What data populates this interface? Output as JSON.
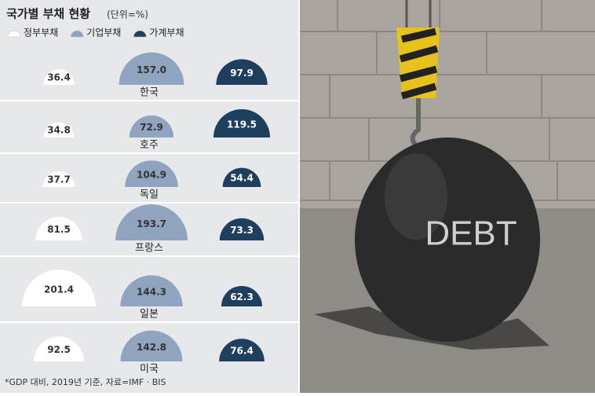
{
  "chart_data": {
    "type": "semicircle",
    "title": "국가별 부채 현황",
    "subtitle": "(단위=%)",
    "note": "*GDP 대비, 2019년 기준, 자료=IMF · BIS",
    "categories": [
      "한국",
      "호주",
      "독일",
      "프랑스",
      "일본",
      "미국"
    ],
    "series": [
      {
        "name": "정부부채",
        "color": "#ffffff",
        "values": [
          36.4,
          34.8,
          37.7,
          81.5,
          201.4,
          92.5
        ],
        "value_labels": [
          "36.4",
          "34.8",
          "37.7",
          "81.5",
          "201.4",
          "92.5"
        ]
      },
      {
        "name": "기업부채",
        "color": "#8fa4be",
        "values": [
          157.0,
          72.9,
          104.9,
          193.7,
          144.3,
          142.8
        ],
        "value_labels": [
          "157.0",
          "72.9",
          "104.9",
          "193.7",
          "144.3",
          "142.8"
        ]
      },
      {
        "name": "가계부채",
        "color": "#1e3f5e",
        "values": [
          97.9,
          119.5,
          54.4,
          73.3,
          62.3,
          76.4
        ],
        "value_labels": [
          "97.9",
          "119.5",
          "54.4",
          "73.3",
          "62.3",
          "76.4"
        ]
      }
    ]
  },
  "photo": {
    "label": "DEBT"
  }
}
